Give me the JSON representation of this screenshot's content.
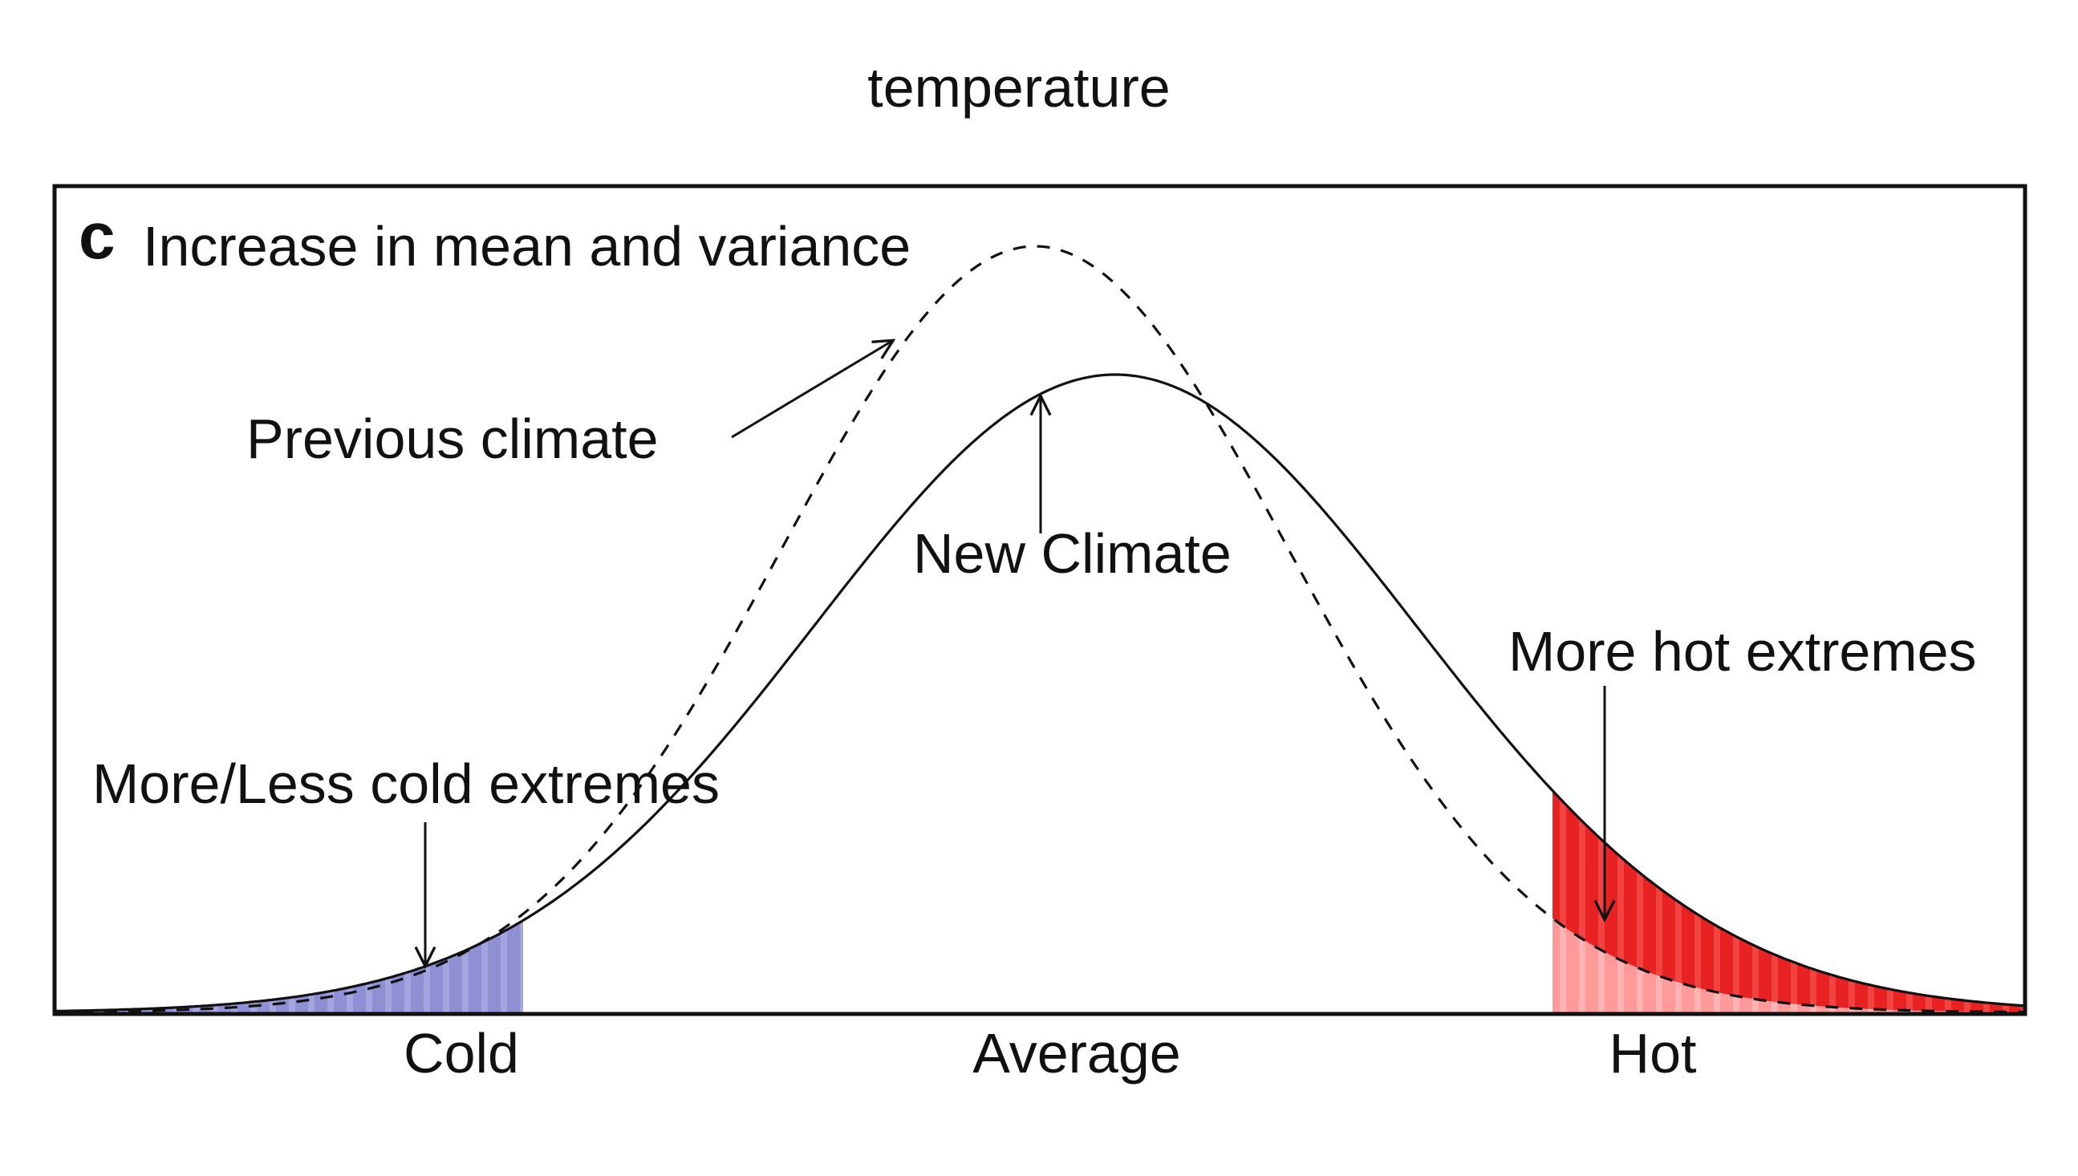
{
  "figure": {
    "top_label": "temperature",
    "panel_letter": "c",
    "panel_title": "Increase in mean and variance",
    "colors": {
      "cold_fill": "#8f8fd4",
      "hot_fill_new": "#e82222",
      "hot_fill_previous": "#ff9a9a",
      "curve": "#111111",
      "frame": "#111111"
    },
    "curves": {
      "previous": {
        "line_style": "dashed",
        "label": "Previous climate"
      },
      "new": {
        "line_style": "solid",
        "label": "New Climate"
      }
    },
    "annotations": {
      "cold_tail": "More/Less cold extremes",
      "hot_tail": "More hot extremes"
    },
    "axis_labels": [
      "Cold",
      "Average",
      "Hot"
    ]
  }
}
